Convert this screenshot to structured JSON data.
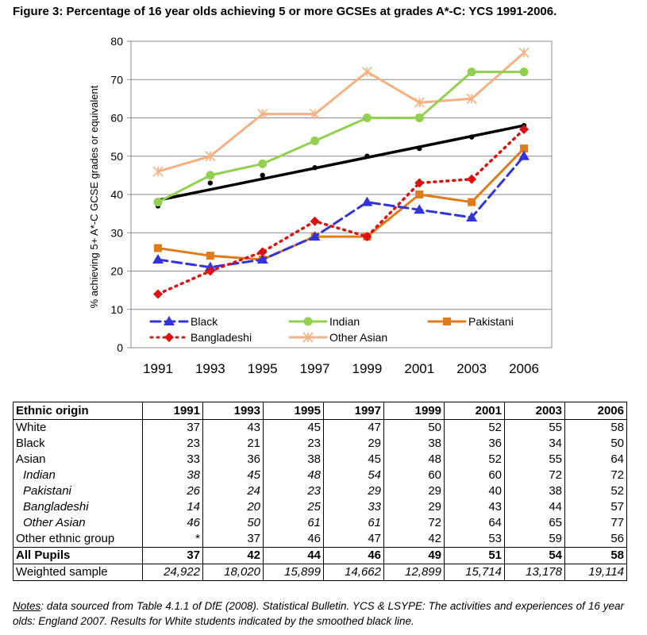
{
  "figure_title": "Figure 3: Percentage of 16 year olds achieving 5 or more GCSEs at grades A*-C: YCS 1991-2006.",
  "chart_data": {
    "type": "line",
    "title": "Figure 3: Percentage of 16 year olds achieving 5 or more GCSEs at grades A*-C: YCS 1991-2006.",
    "xlabel": "",
    "ylabel": "% achieving 5+ A*-C GCSE grades or equivalent",
    "categories": [
      "1991",
      "1993",
      "1995",
      "1997",
      "1999",
      "2001",
      "2003",
      "2006"
    ],
    "ylim": [
      0,
      80
    ],
    "yticks": [
      "0",
      "10",
      "20",
      "30",
      "40",
      "50",
      "60",
      "70",
      "80"
    ],
    "grid": true,
    "legend_position": "bottom-inside",
    "series": [
      {
        "name": "Black",
        "values": [
          23,
          21,
          23,
          29,
          38,
          36,
          34,
          50
        ],
        "color": "#3333dd",
        "marker": "triangle",
        "dash": "dashed"
      },
      {
        "name": "Indian",
        "values": [
          38,
          45,
          48,
          54,
          60,
          60,
          72,
          72
        ],
        "color": "#92d050",
        "marker": "circle",
        "dash": "solid"
      },
      {
        "name": "Pakistani",
        "values": [
          26,
          24,
          23,
          29,
          29,
          40,
          38,
          52
        ],
        "color": "#e07b19",
        "marker": "square",
        "dash": "solid"
      },
      {
        "name": "Bangladeshi",
        "values": [
          14,
          20,
          25,
          33,
          29,
          43,
          44,
          57
        ],
        "color": "#dd1111",
        "marker": "diamond",
        "dash": "dotted"
      },
      {
        "name": "Other Asian",
        "values": [
          46,
          50,
          61,
          61,
          72,
          64,
          65,
          77
        ],
        "color": "#f4b183",
        "marker": "star",
        "dash": "solid"
      }
    ],
    "white_points": {
      "name": "White",
      "values": [
        37,
        43,
        45,
        47,
        50,
        52,
        55,
        58
      ],
      "color": "#000000"
    },
    "white_trend": {
      "start": 38.5,
      "end": 58,
      "color": "#000000"
    }
  },
  "table": {
    "headers": [
      "Ethnic origin",
      "1991",
      "1993",
      "1995",
      "1997",
      "1999",
      "2001",
      "2003",
      "2006"
    ],
    "rows": [
      {
        "label": "White",
        "values": [
          "37",
          "43",
          "45",
          "47",
          "50",
          "52",
          "55",
          "58"
        ],
        "style": "plain"
      },
      {
        "label": "Black",
        "values": [
          "23",
          "21",
          "23",
          "29",
          "38",
          "36",
          "34",
          "50"
        ],
        "style": "plain"
      },
      {
        "label": "Asian",
        "values": [
          "33",
          "36",
          "38",
          "45",
          "48",
          "52",
          "55",
          "64"
        ],
        "style": "plain"
      },
      {
        "label": "Indian",
        "values": [
          "38",
          "45",
          "48",
          "54",
          "60",
          "60",
          "72",
          "72"
        ],
        "style": "sub"
      },
      {
        "label": "Pakistani",
        "values": [
          "26",
          "24",
          "23",
          "29",
          "29",
          "40",
          "38",
          "52"
        ],
        "style": "sub"
      },
      {
        "label": "Bangladeshi",
        "values": [
          "14",
          "20",
          "25",
          "33",
          "29",
          "43",
          "44",
          "57"
        ],
        "style": "sub"
      },
      {
        "label": "Other Asian",
        "values": [
          "46",
          "50",
          "61",
          "61",
          "72",
          "64",
          "65",
          "77"
        ],
        "style": "sub"
      },
      {
        "label": "Other ethnic group",
        "values": [
          "*",
          "37",
          "46",
          "47",
          "42",
          "53",
          "59",
          "56"
        ],
        "style": "plain"
      },
      {
        "label": "All Pupils",
        "values": [
          "37",
          "42",
          "44",
          "46",
          "49",
          "51",
          "54",
          "58"
        ],
        "style": "allpupils"
      },
      {
        "label": "Weighted sample",
        "values": [
          "24,922",
          "18,020",
          "15,899",
          "14,662",
          "12,899",
          "15,714",
          "13,178",
          "19,114"
        ],
        "style": "weighted"
      }
    ]
  },
  "notes": {
    "label": "Notes",
    "text": ": data sourced from Table 4.1.1 of DfE (2008). Statistical Bulletin. YCS & LSYPE: The activities and experiences of 16 year olds: England 2007. Results for White students indicated by the smoothed black line."
  }
}
